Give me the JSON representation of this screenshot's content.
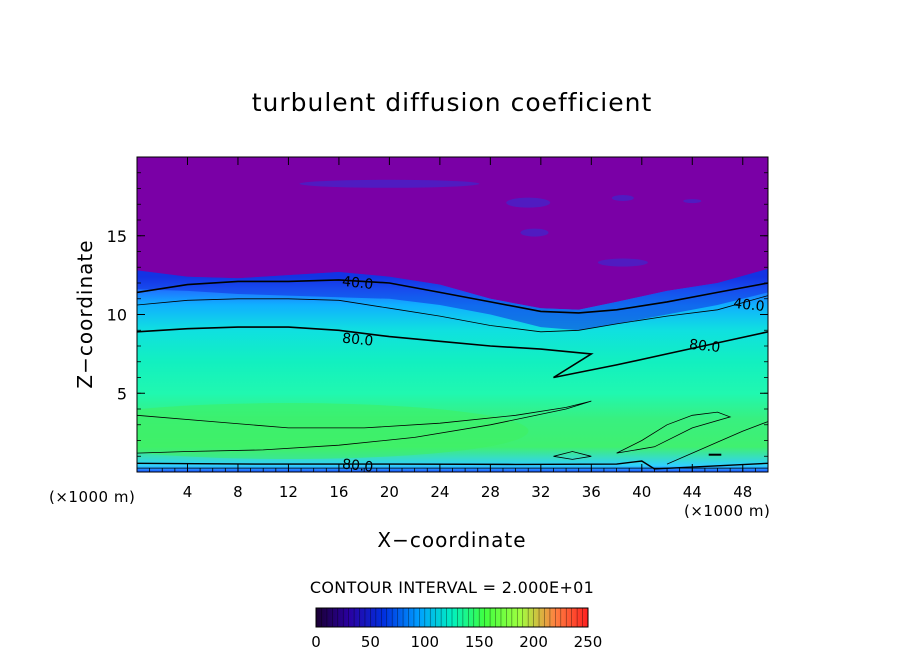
{
  "chart_data": {
    "type": "heatmap",
    "title": "turbulent diffusion coefficient",
    "xlabel": "X−coordinate",
    "ylabel": "Z−coordinate",
    "x_unit": "(×1000 m)",
    "y_unit": "(×1000 m)",
    "xlim": [
      0,
      50
    ],
    "ylim": [
      0,
      20
    ],
    "x_ticks": [
      4,
      8,
      12,
      16,
      20,
      24,
      28,
      32,
      36,
      40,
      44,
      48
    ],
    "y_ticks": [
      5,
      10,
      15
    ],
    "contour_interval_label": "CONTOUR INTERVAL = 2.000E+01",
    "contour_labels": [
      {
        "text": "40.0",
        "x": 17.5,
        "z": 12.1
      },
      {
        "text": "40.0",
        "x": 48.5,
        "z": 10.7
      },
      {
        "text": "80.0",
        "x": 17.5,
        "z": 8.5
      },
      {
        "text": "80.0",
        "x": 45.0,
        "z": 8.1
      },
      {
        "text": "80.0",
        "x": 17.5,
        "z": 0.5
      }
    ],
    "colorbar": {
      "min": 0,
      "max": 250,
      "ticks": [
        0,
        50,
        100,
        150,
        200,
        250
      ],
      "colors": [
        "#1a0033",
        "#2a00a0",
        "#0040ff",
        "#00c0ff",
        "#00ffb0",
        "#40ff40",
        "#b0ff40",
        "#ff8040",
        "#ff2020"
      ]
    },
    "colors": {
      "low": "#7a00a6",
      "band": "#1030e0",
      "mid": "#10c8ff",
      "high": "#10ffb0",
      "peak": "#40f060"
    }
  }
}
